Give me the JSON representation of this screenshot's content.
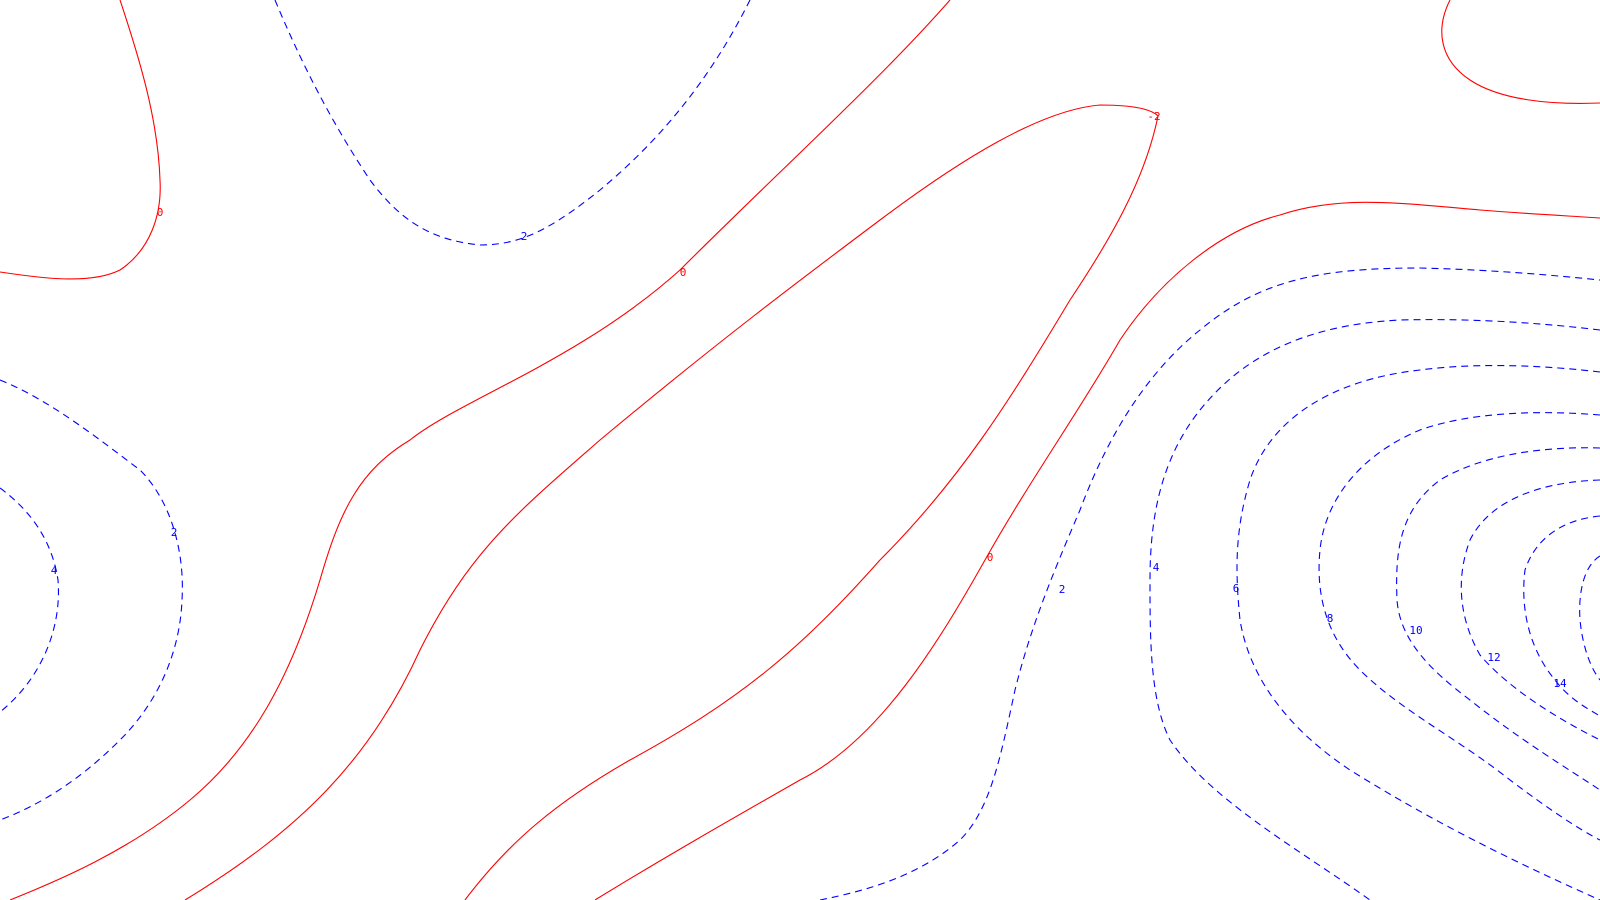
{
  "chart_data": {
    "type": "contour",
    "title": "",
    "xlabel": "",
    "ylabel": "",
    "grid": false,
    "legend": "none",
    "levels": [
      -2,
      0,
      2,
      4,
      6,
      8,
      10,
      12,
      14
    ],
    "styles": {
      "nonpositive": {
        "color": "#ff0000",
        "dash": "solid"
      },
      "positive": {
        "color": "#0000ff",
        "dash": "dashed"
      }
    },
    "labels": [
      {
        "level": -2,
        "text": "-2"
      },
      {
        "level": 0,
        "text": "0"
      },
      {
        "level": 2,
        "text": "2"
      },
      {
        "level": 4,
        "text": "4"
      },
      {
        "level": 6,
        "text": "6"
      },
      {
        "level": 8,
        "text": "8"
      },
      {
        "level": 10,
        "text": "10"
      },
      {
        "level": 12,
        "text": "12"
      },
      {
        "level": 14,
        "text": "14"
      }
    ]
  }
}
